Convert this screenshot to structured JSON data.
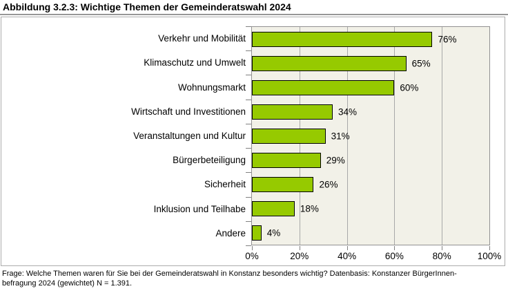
{
  "title": "Abbildung 3.2.3: Wichtige Themen der Gemeinderatswahl 2024",
  "footer": {
    "line1": "Frage: Welche Themen waren für Sie bei der Gemeinderatswahl in Konstanz besonders wichtig? Datenbasis: Konstanzer BürgerInnen-",
    "line2": "befragung 2024 (gewichtet) N = 1.391."
  },
  "colors": {
    "bar_fill": "#96ca00",
    "bar_border": "#000000",
    "plot_bg": "#f2f1e8",
    "grid": "#a8a8a8",
    "frame_border": "#ababab",
    "tick": "#808080",
    "text": "#000000"
  },
  "chart_data": {
    "type": "bar",
    "orientation": "horizontal",
    "title": "Abbildung 3.2.3: Wichtige Themen der Gemeinderatswahl 2024",
    "categories": [
      "Verkehr und Mobilität",
      "Klimaschutz und Umwelt",
      "Wohnungsmarkt",
      "Wirtschaft und Investitionen",
      "Veranstaltungen und Kultur",
      "Bürgerbeteiligung",
      "Sicherheit",
      "Inklusion und Teilhabe",
      "Andere"
    ],
    "values": [
      76,
      65,
      60,
      34,
      31,
      29,
      26,
      18,
      4
    ],
    "value_labels": [
      "76%",
      "65%",
      "60%",
      "34%",
      "31%",
      "29%",
      "26%",
      "18%",
      "4%"
    ],
    "xlabel": "",
    "ylabel": "",
    "xlim": [
      0,
      100
    ],
    "xticks": [
      0,
      20,
      40,
      60,
      80,
      100
    ],
    "xtick_labels": [
      "0%",
      "20%",
      "40%",
      "60%",
      "80%",
      "100%"
    ],
    "grid": "vertical",
    "legend": "none"
  }
}
